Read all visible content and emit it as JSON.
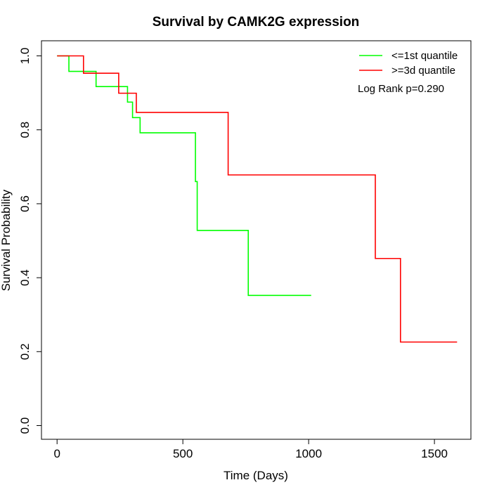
{
  "chart_data": {
    "type": "line",
    "step": true,
    "title": "Survival by CAMK2G expression",
    "xlabel": "Time (Days)",
    "ylabel": "Survival Probability",
    "xlim": [
      0,
      1600
    ],
    "ylim": [
      0,
      1.0
    ],
    "x_ticks": [
      0,
      500,
      1000,
      1500
    ],
    "y_ticks": [
      0.0,
      0.2,
      0.4,
      0.6,
      0.8,
      1.0
    ],
    "x_tick_labels": [
      "0",
      "500",
      "1000",
      "1500"
    ],
    "y_tick_labels": [
      "0.0",
      "0.2",
      "0.4",
      "0.6",
      "0.8",
      "1.0"
    ],
    "grid": false,
    "legend_position": "top-right",
    "series": [
      {
        "name": "<=1st quantile",
        "color": "#00ff00",
        "points": [
          [
            0,
            1.0
          ],
          [
            47,
            0.958
          ],
          [
            155,
            0.917
          ],
          [
            280,
            0.875
          ],
          [
            300,
            0.833
          ],
          [
            330,
            0.792
          ],
          [
            550,
            0.66
          ],
          [
            557,
            0.528
          ],
          [
            760,
            0.352
          ],
          [
            1010,
            0.352
          ]
        ]
      },
      {
        "name": ">=3d quantile",
        "color": "#ff0000",
        "points": [
          [
            0,
            1.0
          ],
          [
            105,
            0.953
          ],
          [
            245,
            0.899
          ],
          [
            315,
            0.847
          ],
          [
            680,
            0.678
          ],
          [
            1265,
            0.452
          ],
          [
            1365,
            0.226
          ],
          [
            1590,
            0.226
          ]
        ]
      }
    ],
    "annotation": "Log Rank p=0.290"
  }
}
